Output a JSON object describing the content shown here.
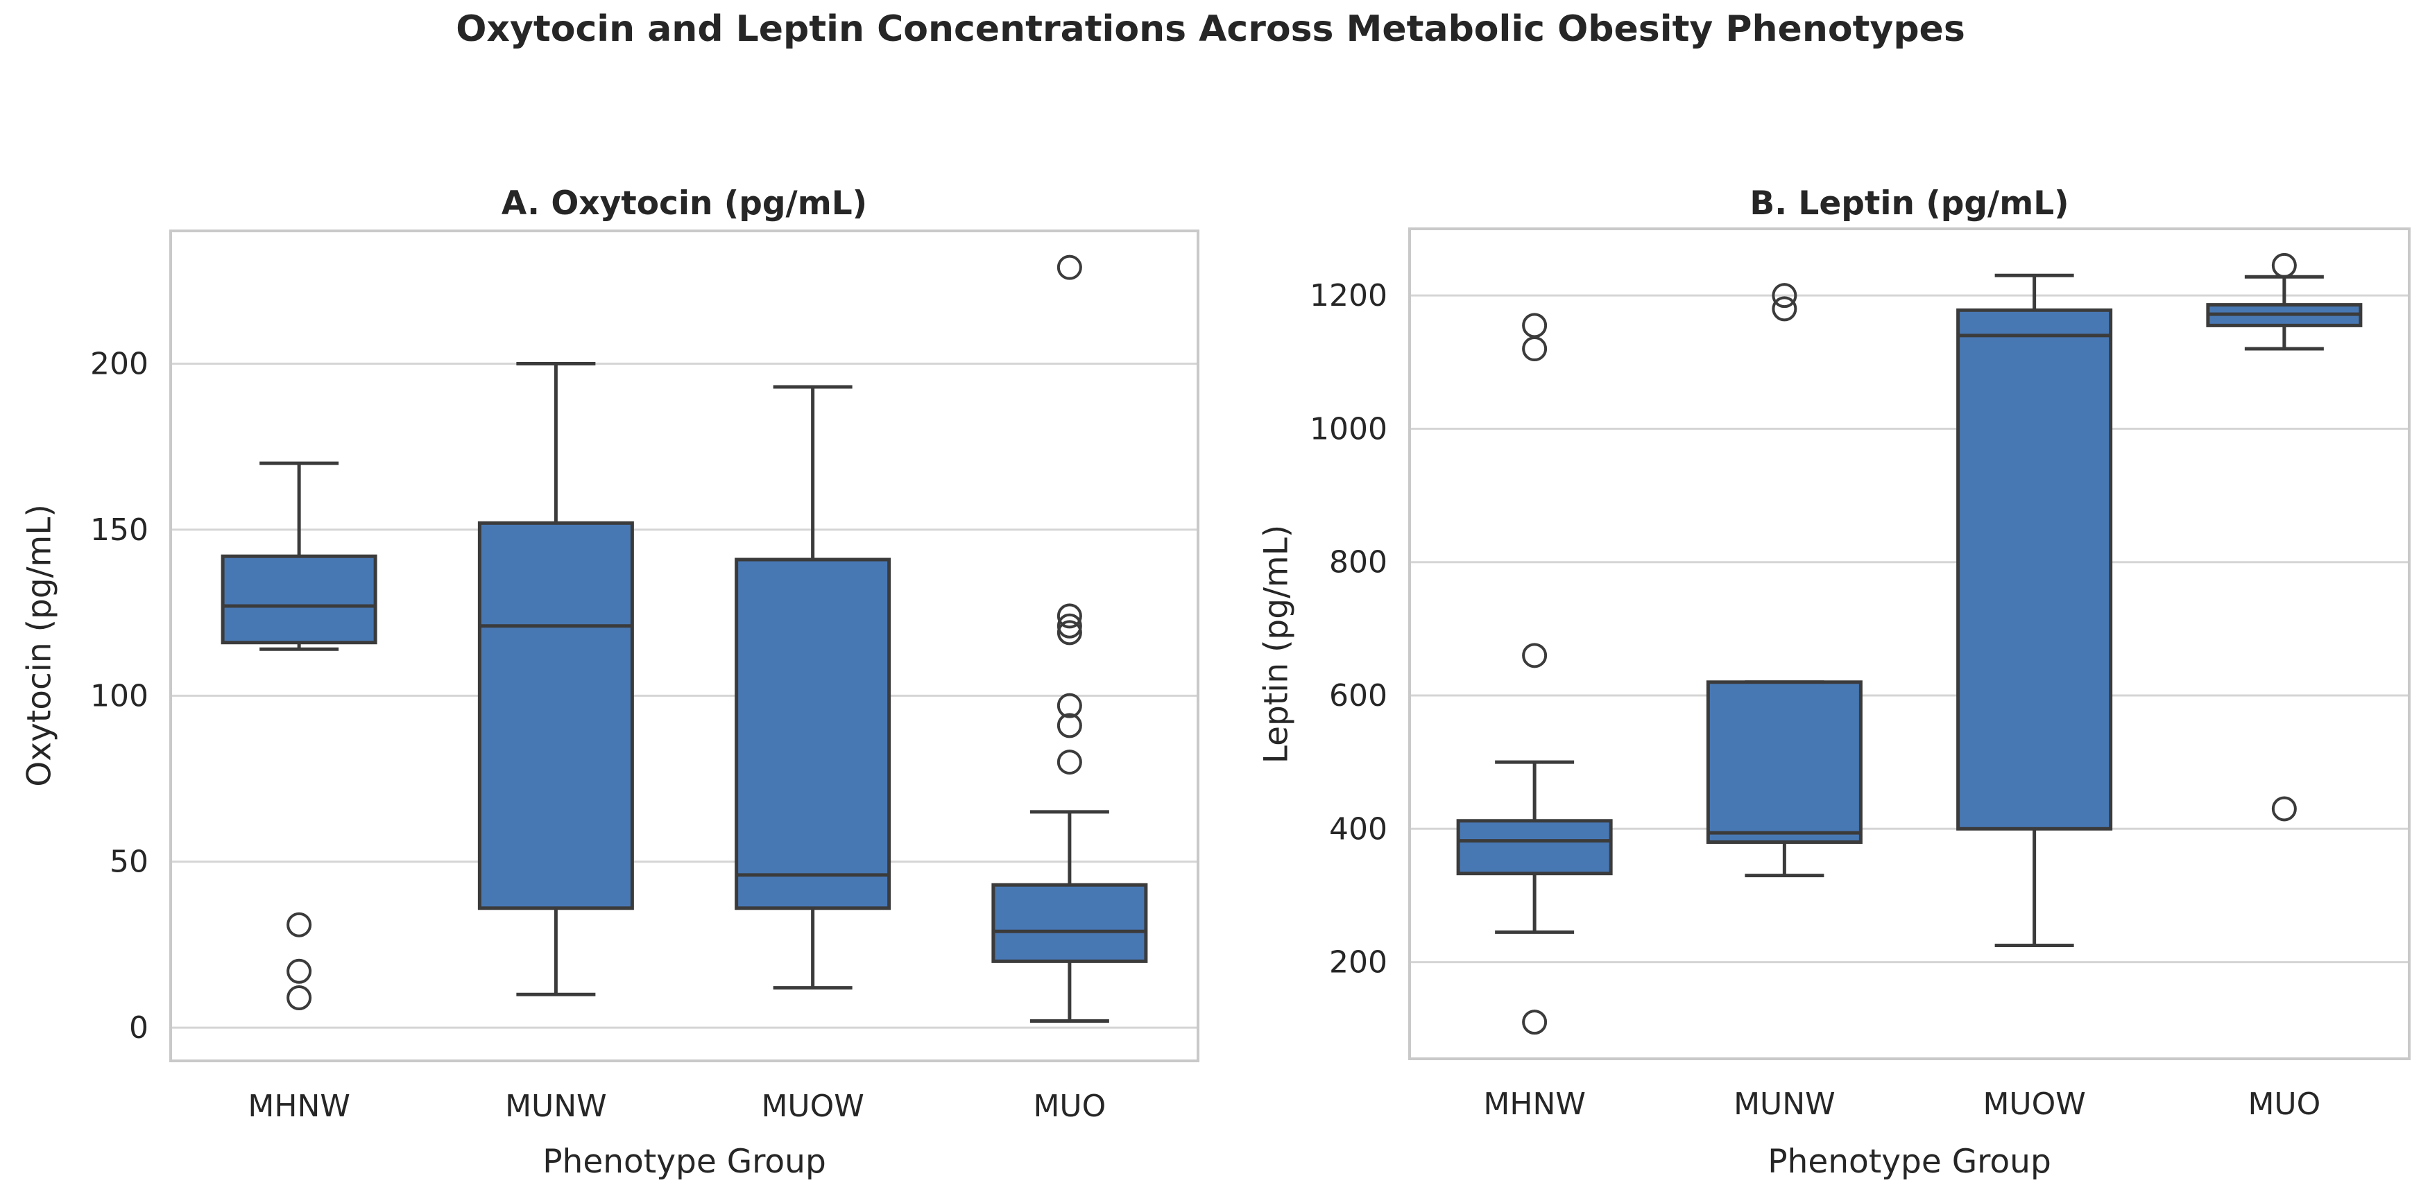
{
  "figure_title": "Oxytocin and Leptin Concentrations Across Metabolic Obesity Phenotypes",
  "colors": {
    "box_fill": "#4878B4",
    "box_edge": "#3B3B3B",
    "median": "#3B3B3B",
    "whisker": "#3B3B3B",
    "outlier_edge": "#3B3B3B",
    "grid": "#D5D5D5",
    "spine": "#C9C9C9",
    "text": "#262626",
    "background": "#FFFFFF"
  },
  "chart_data": {
    "type": "boxplot",
    "title": "Oxytocin and Leptin Concentrations Across Metabolic Obesity Phenotypes",
    "categories": [
      "MHNW",
      "MUNW",
      "MUOW",
      "MUO"
    ],
    "xlabel": "Phenotype Group",
    "grid": "horizontal",
    "panels": [
      {
        "title": "A. Oxytocin (pg/mL)",
        "ylabel": "Oxytocin (pg/mL)",
        "yticks": [
          0,
          50,
          100,
          150,
          200
        ],
        "ylim": [
          -10,
          240
        ],
        "boxes": [
          {
            "category": "MHNW",
            "whislo": 114,
            "q1": 116,
            "med": 127,
            "q3": 142,
            "whishi": 170,
            "outliers": [
              31,
              17,
              9
            ]
          },
          {
            "category": "MUNW",
            "whislo": 10,
            "q1": 36,
            "med": 121,
            "q3": 152,
            "whishi": 200,
            "outliers": []
          },
          {
            "category": "MUOW",
            "whislo": 12,
            "q1": 36,
            "med": 46,
            "q3": 141,
            "whishi": 193,
            "outliers": []
          },
          {
            "category": "MUO",
            "whislo": 2,
            "q1": 20,
            "med": 29,
            "q3": 43,
            "whishi": 65,
            "outliers": [
              229,
              124,
              121,
              119,
              97,
              91,
              80
            ]
          }
        ]
      },
      {
        "title": "B. Leptin (pg/mL)",
        "ylabel": "Leptin (pg/mL)",
        "yticks": [
          200,
          400,
          600,
          800,
          1000,
          1200
        ],
        "ylim": [
          55,
          1300
        ],
        "boxes": [
          {
            "category": "MHNW",
            "whislo": 245,
            "q1": 333,
            "med": 382,
            "q3": 412,
            "whishi": 500,
            "outliers": [
              1155,
              1120,
              660,
              110
            ]
          },
          {
            "category": "MUNW",
            "whislo": 330,
            "q1": 380,
            "med": 394,
            "q3": 620,
            "whishi": 620,
            "outliers": [
              1200,
              1180
            ]
          },
          {
            "category": "MUOW",
            "whislo": 225,
            "q1": 400,
            "med": 1140,
            "q3": 1178,
            "whishi": 1230,
            "outliers": []
          },
          {
            "category": "MUO",
            "whislo": 1120,
            "q1": 1155,
            "med": 1172,
            "q3": 1186,
            "whishi": 1228,
            "outliers": [
              1245,
              430
            ]
          }
        ]
      }
    ]
  }
}
